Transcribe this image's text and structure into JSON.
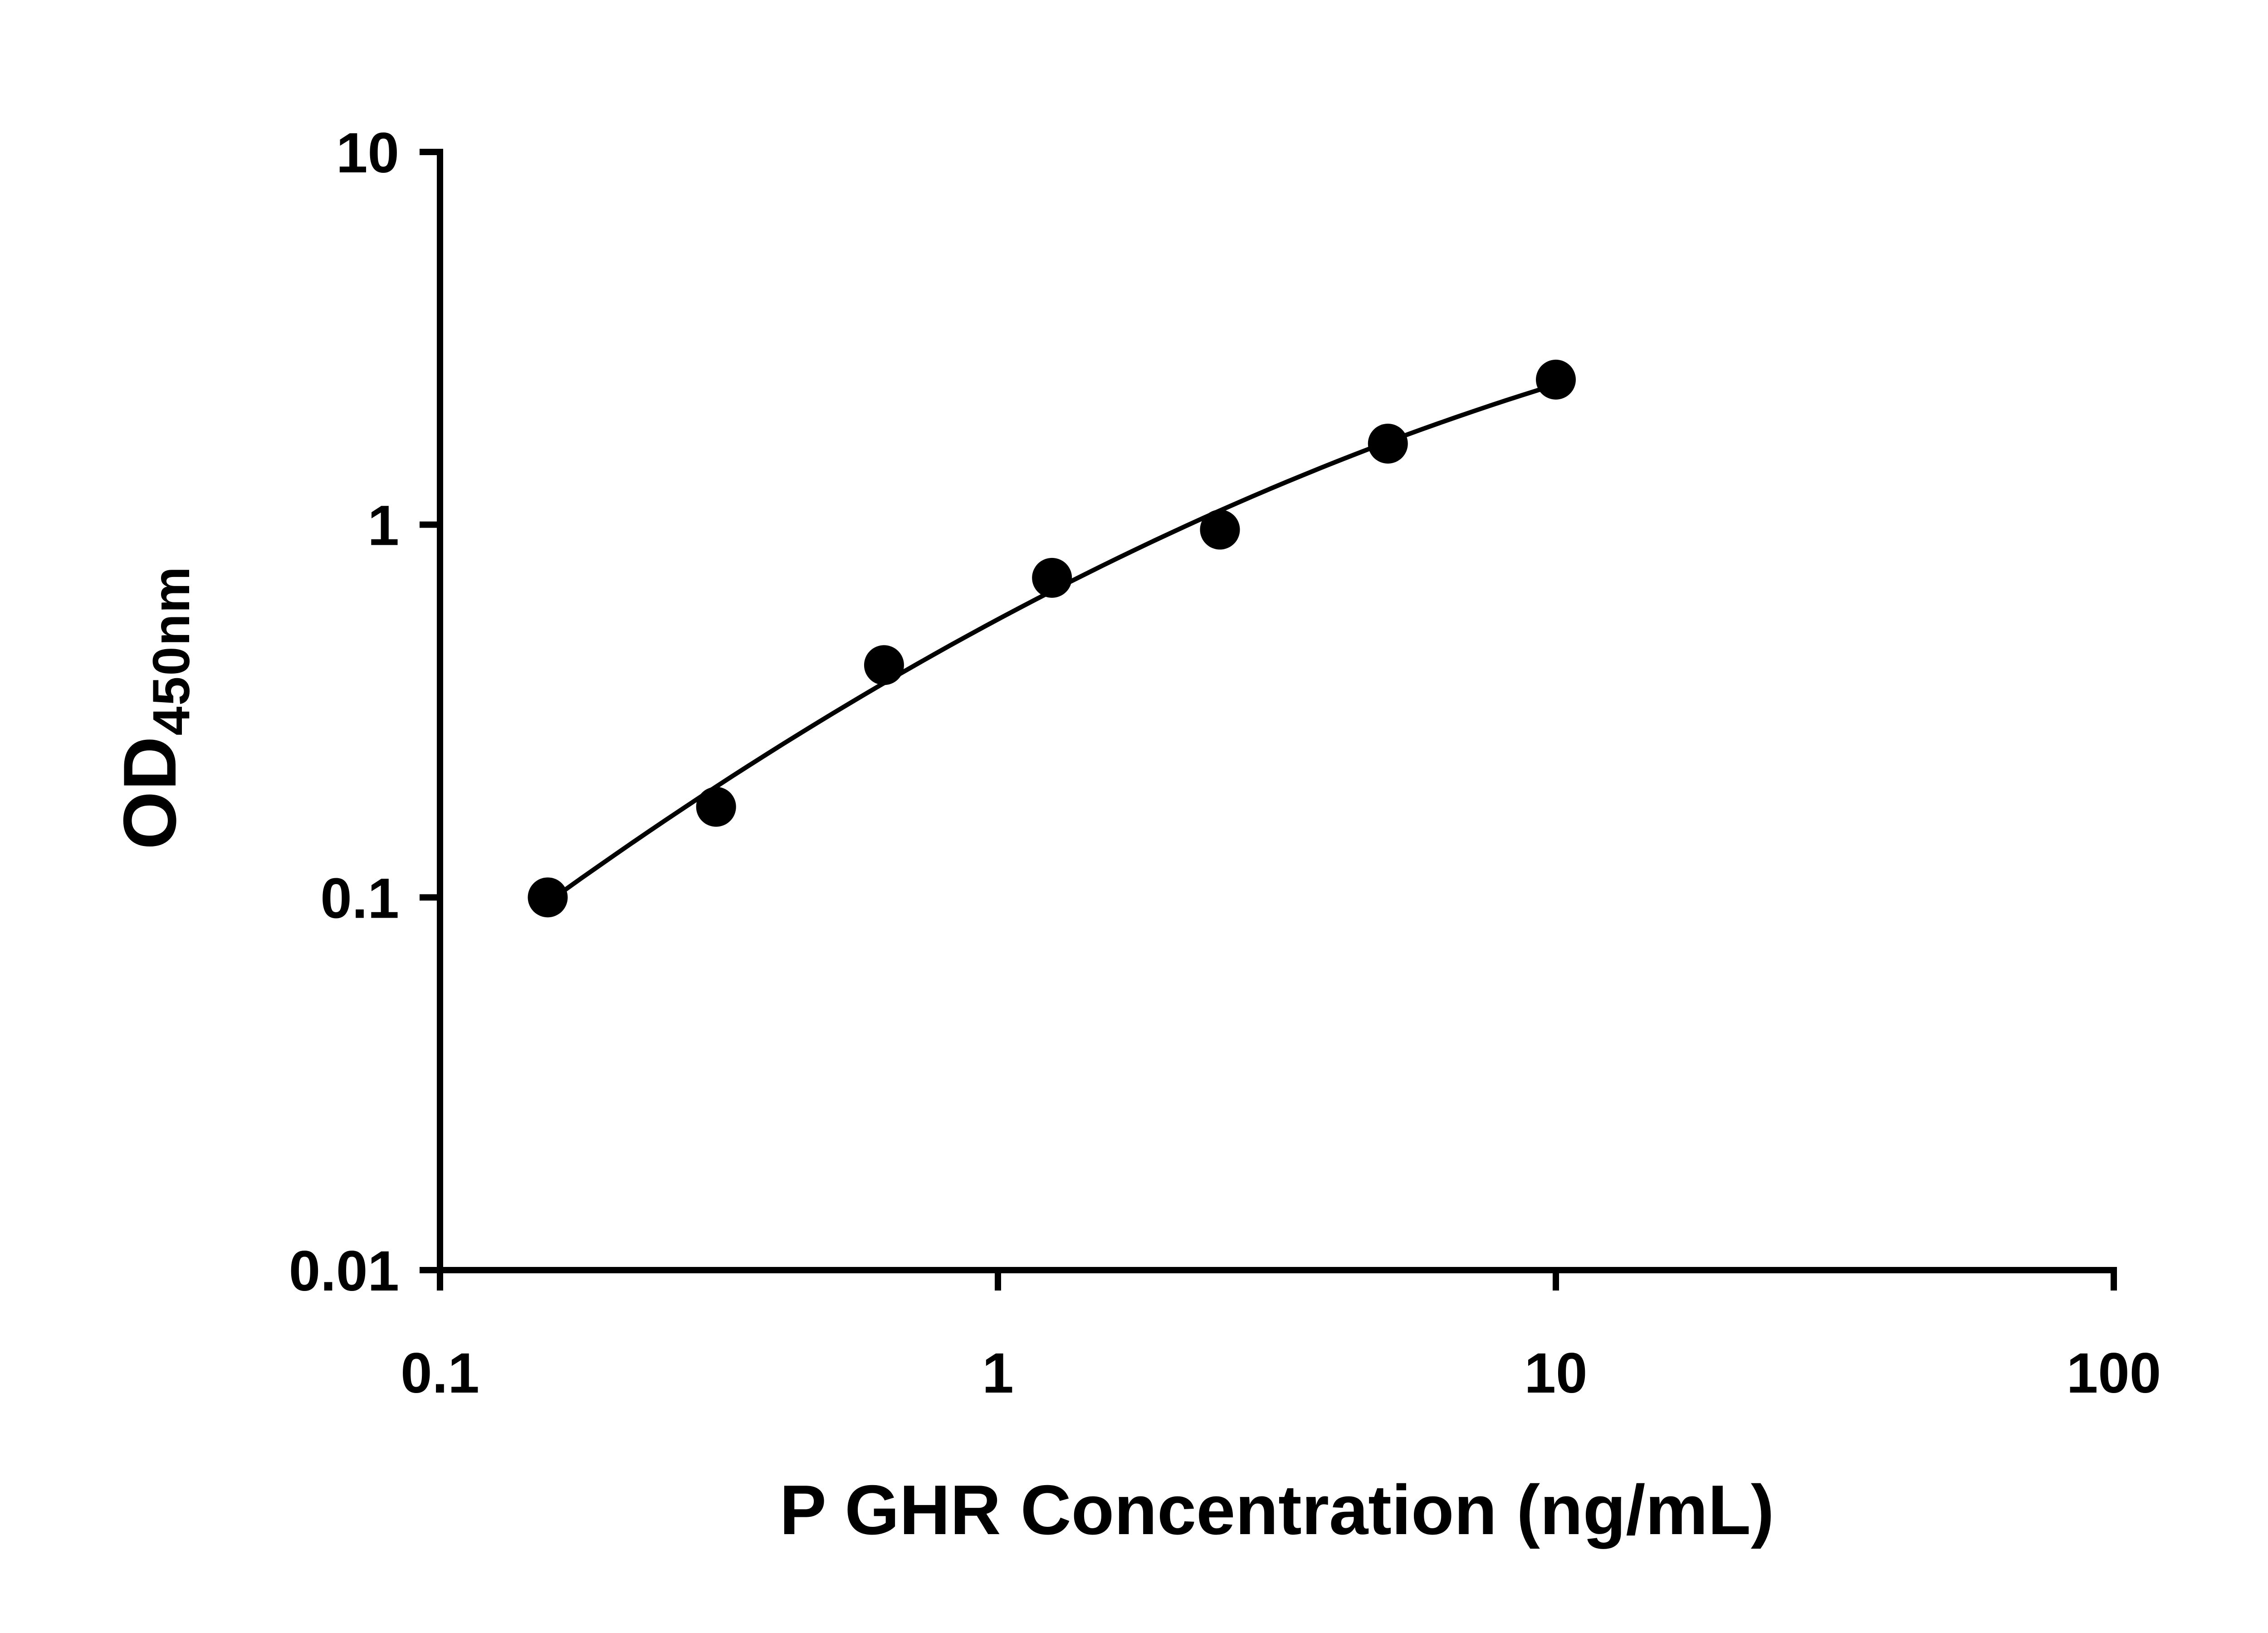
{
  "chart_data": {
    "type": "scatter",
    "title": "",
    "xlabel": "P GHR Concentration (ng/mL)",
    "ylabel_main": "OD",
    "ylabel_sub": "450nm",
    "x_scale": "log",
    "y_scale": "log",
    "xlim": [
      0.1,
      100
    ],
    "ylim": [
      0.01,
      10
    ],
    "grid": false,
    "legend": null,
    "fit_line": "smooth quadratic fit in log-log space",
    "marker_color": "#000000",
    "line_color": "#000000",
    "axis_color": "#000000",
    "x_ticks": [
      {
        "value": 0.1,
        "label": "0.1"
      },
      {
        "value": 1,
        "label": "1"
      },
      {
        "value": 10,
        "label": "10"
      },
      {
        "value": 100,
        "label": "100"
      }
    ],
    "y_ticks": [
      {
        "value": 0.01,
        "label": "0.01"
      },
      {
        "value": 0.1,
        "label": "0.1"
      },
      {
        "value": 1,
        "label": "1"
      },
      {
        "value": 10,
        "label": "10"
      }
    ],
    "points": [
      {
        "x": 0.156,
        "y": 0.1
      },
      {
        "x": 0.3125,
        "y": 0.175
      },
      {
        "x": 0.625,
        "y": 0.42
      },
      {
        "x": 1.25,
        "y": 0.72
      },
      {
        "x": 2.5,
        "y": 0.97
      },
      {
        "x": 5,
        "y": 1.65
      },
      {
        "x": 10,
        "y": 2.45
      }
    ]
  }
}
